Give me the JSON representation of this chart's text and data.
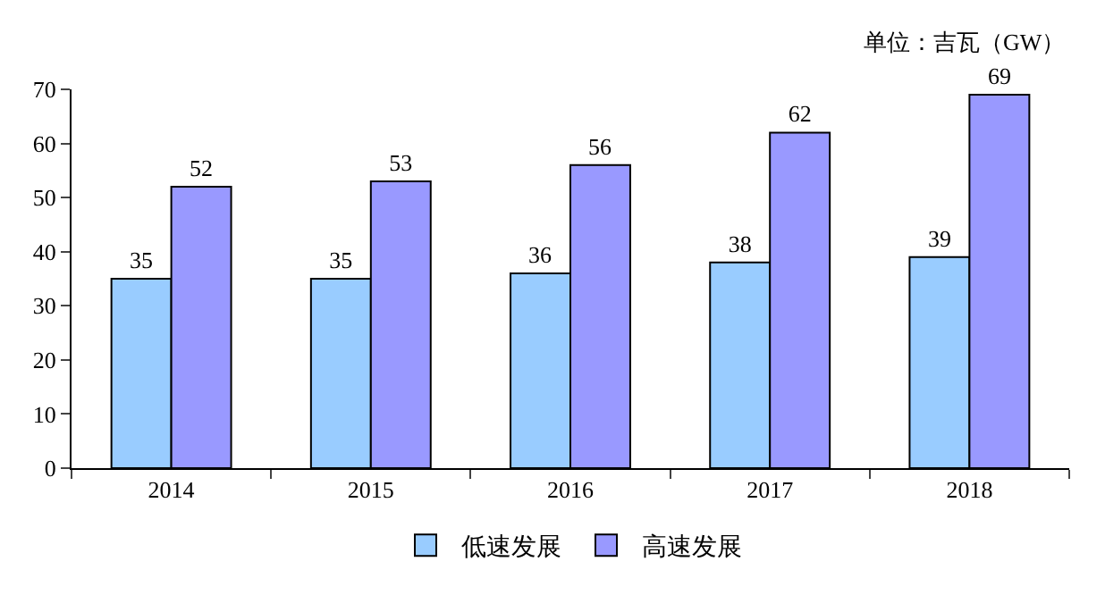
{
  "chart_data": {
    "type": "bar",
    "categories": [
      "2014",
      "2015",
      "2016",
      "2017",
      "2018"
    ],
    "series": [
      {
        "name": "低速发展",
        "color": "#99ccff",
        "values": [
          35,
          35,
          36,
          38,
          39
        ]
      },
      {
        "name": "高速发展",
        "color": "#9999ff",
        "values": [
          52,
          53,
          56,
          62,
          69
        ]
      }
    ],
    "ylim": [
      0,
      70
    ],
    "yticks": [
      0,
      10,
      20,
      30,
      40,
      50,
      60,
      70
    ],
    "data_labels": true,
    "legend": "bottom",
    "annotations": [
      "单位：吉瓦（GW）"
    ]
  }
}
